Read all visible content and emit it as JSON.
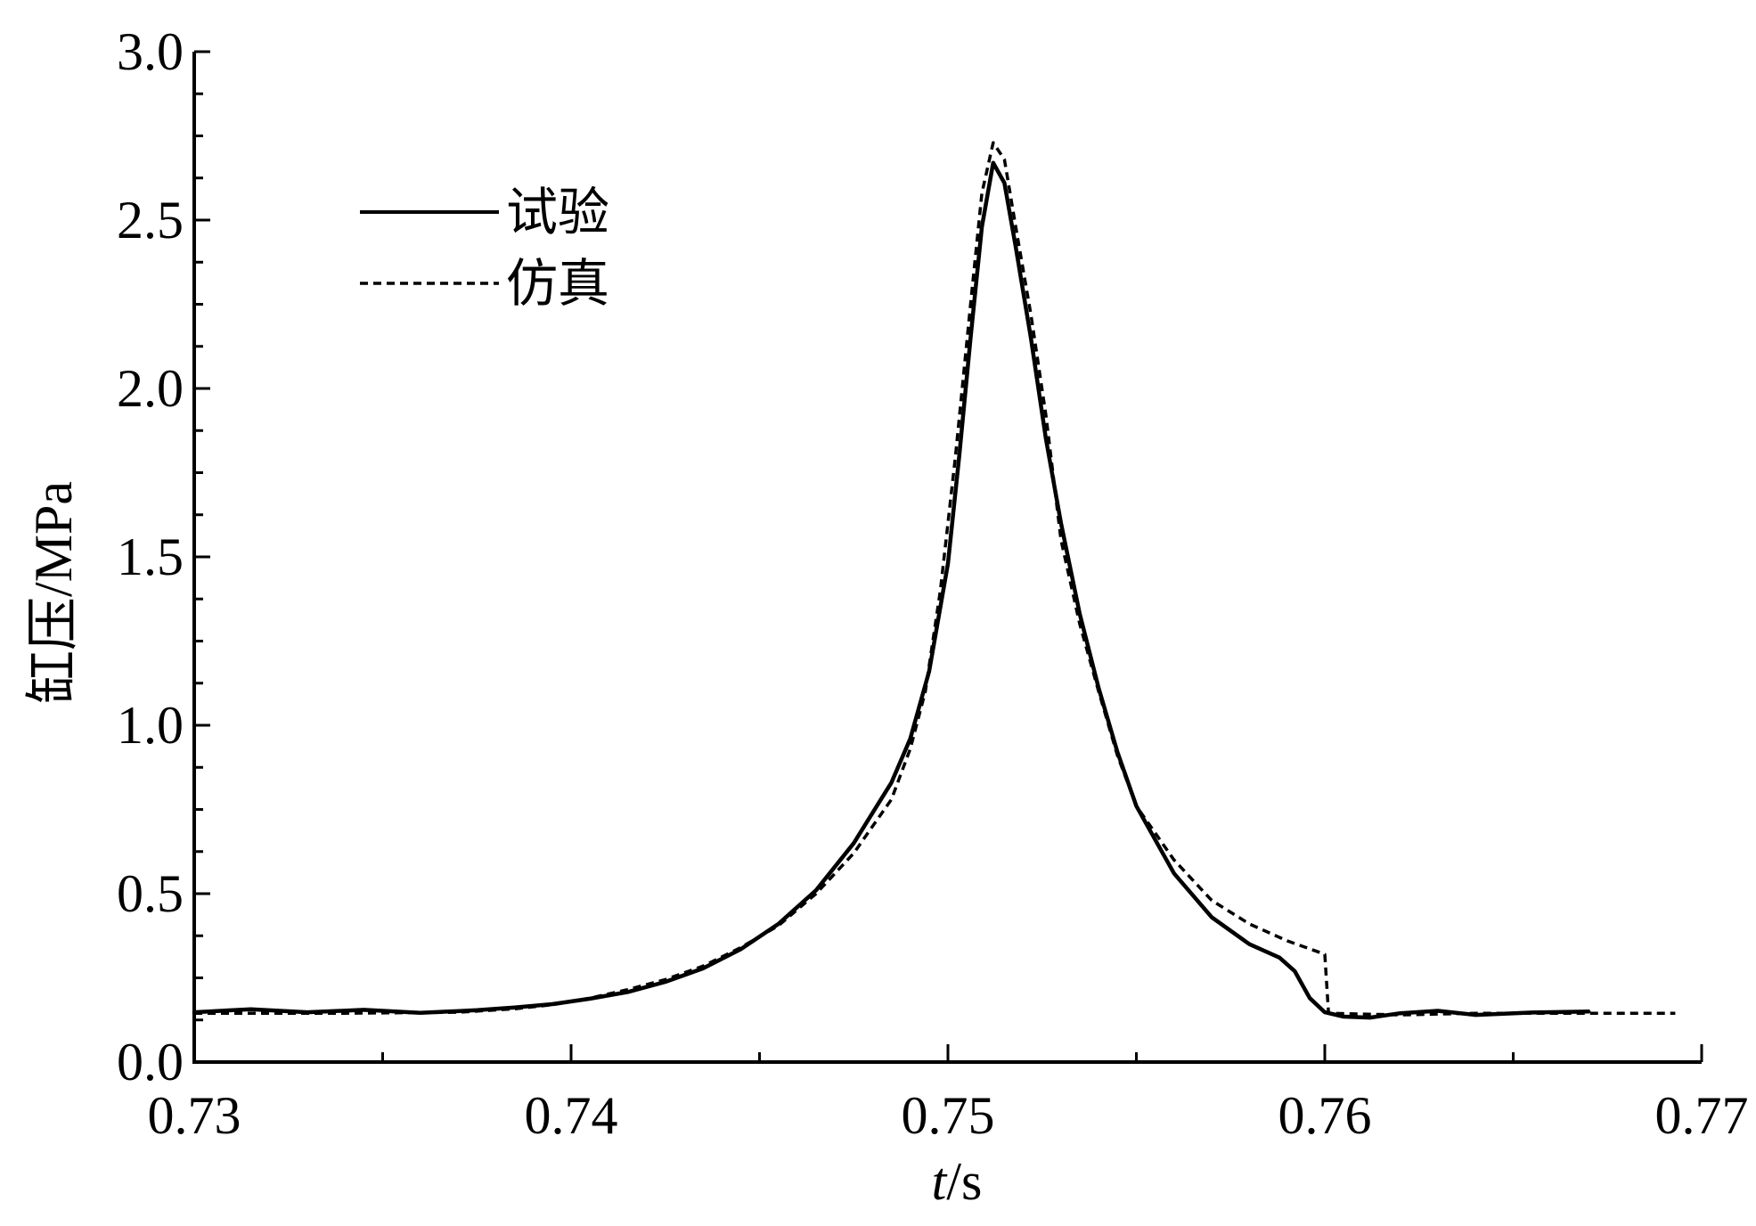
{
  "chart_data": {
    "type": "line",
    "xlabel_italic": "t",
    "xlabel_unit": "/s",
    "ylabel": "缸压/MPa",
    "xlim": [
      0.73,
      0.77
    ],
    "ylim": [
      0.0,
      3.0
    ],
    "xticks": [
      0.73,
      0.74,
      0.75,
      0.76,
      0.77
    ],
    "xtick_labels": [
      "0.73",
      "0.74",
      "0.75",
      "0.76",
      "0.77"
    ],
    "yticks": [
      0.0,
      0.5,
      1.0,
      1.5,
      2.0,
      2.5,
      3.0
    ],
    "ytick_labels": [
      "0.0",
      "0.5",
      "1.0",
      "1.5",
      "2.0",
      "2.5",
      "3.0"
    ],
    "legend_position": "top-left",
    "series": [
      {
        "name": "试验",
        "style": "solid",
        "color": "#000000",
        "points": [
          [
            0.73,
            0.148
          ],
          [
            0.7315,
            0.157
          ],
          [
            0.733,
            0.148
          ],
          [
            0.7345,
            0.155
          ],
          [
            0.736,
            0.146
          ],
          [
            0.7375,
            0.154
          ],
          [
            0.7385,
            0.162
          ],
          [
            0.7395,
            0.172
          ],
          [
            0.7405,
            0.188
          ],
          [
            0.7415,
            0.208
          ],
          [
            0.7425,
            0.238
          ],
          [
            0.7435,
            0.278
          ],
          [
            0.7445,
            0.335
          ],
          [
            0.7455,
            0.41
          ],
          [
            0.7465,
            0.51
          ],
          [
            0.7475,
            0.65
          ],
          [
            0.748,
            0.74
          ],
          [
            0.7485,
            0.83
          ],
          [
            0.749,
            0.96
          ],
          [
            0.7495,
            1.16
          ],
          [
            0.75,
            1.48
          ],
          [
            0.7503,
            1.8
          ],
          [
            0.7506,
            2.15
          ],
          [
            0.7509,
            2.48
          ],
          [
            0.7512,
            2.67
          ],
          [
            0.7515,
            2.61
          ],
          [
            0.7518,
            2.42
          ],
          [
            0.7522,
            2.15
          ],
          [
            0.7526,
            1.85
          ],
          [
            0.753,
            1.6
          ],
          [
            0.7535,
            1.33
          ],
          [
            0.754,
            1.11
          ],
          [
            0.7545,
            0.92
          ],
          [
            0.755,
            0.76
          ],
          [
            0.756,
            0.56
          ],
          [
            0.757,
            0.43
          ],
          [
            0.758,
            0.35
          ],
          [
            0.7588,
            0.31
          ],
          [
            0.7592,
            0.27
          ],
          [
            0.7596,
            0.19
          ],
          [
            0.76,
            0.148
          ],
          [
            0.7605,
            0.135
          ],
          [
            0.7612,
            0.132
          ],
          [
            0.762,
            0.145
          ],
          [
            0.763,
            0.152
          ],
          [
            0.764,
            0.14
          ],
          [
            0.7655,
            0.147
          ],
          [
            0.767,
            0.15
          ]
        ]
      },
      {
        "name": "仿真",
        "style": "dashed",
        "color": "#000000",
        "points": [
          [
            0.73,
            0.145
          ],
          [
            0.734,
            0.145
          ],
          [
            0.737,
            0.148
          ],
          [
            0.7385,
            0.158
          ],
          [
            0.7395,
            0.17
          ],
          [
            0.7405,
            0.19
          ],
          [
            0.7415,
            0.215
          ],
          [
            0.7425,
            0.245
          ],
          [
            0.7435,
            0.285
          ],
          [
            0.7445,
            0.34
          ],
          [
            0.7455,
            0.405
          ],
          [
            0.7465,
            0.5
          ],
          [
            0.7475,
            0.62
          ],
          [
            0.748,
            0.7
          ],
          [
            0.7485,
            0.78
          ],
          [
            0.749,
            0.93
          ],
          [
            0.7494,
            1.1
          ],
          [
            0.7498,
            1.4
          ],
          [
            0.7502,
            1.8
          ],
          [
            0.7506,
            2.25
          ],
          [
            0.7509,
            2.58
          ],
          [
            0.7512,
            2.73
          ],
          [
            0.7515,
            2.68
          ],
          [
            0.7518,
            2.48
          ],
          [
            0.7522,
            2.22
          ],
          [
            0.7526,
            1.92
          ],
          [
            0.753,
            1.55
          ],
          [
            0.7535,
            1.3
          ],
          [
            0.754,
            1.1
          ],
          [
            0.7545,
            0.91
          ],
          [
            0.755,
            0.76
          ],
          [
            0.756,
            0.6
          ],
          [
            0.757,
            0.48
          ],
          [
            0.758,
            0.41
          ],
          [
            0.759,
            0.36
          ],
          [
            0.76,
            0.32
          ],
          [
            0.7601,
            0.145
          ],
          [
            0.762,
            0.14
          ],
          [
            0.764,
            0.145
          ],
          [
            0.767,
            0.145
          ],
          [
            0.7693,
            0.145
          ]
        ]
      }
    ]
  }
}
